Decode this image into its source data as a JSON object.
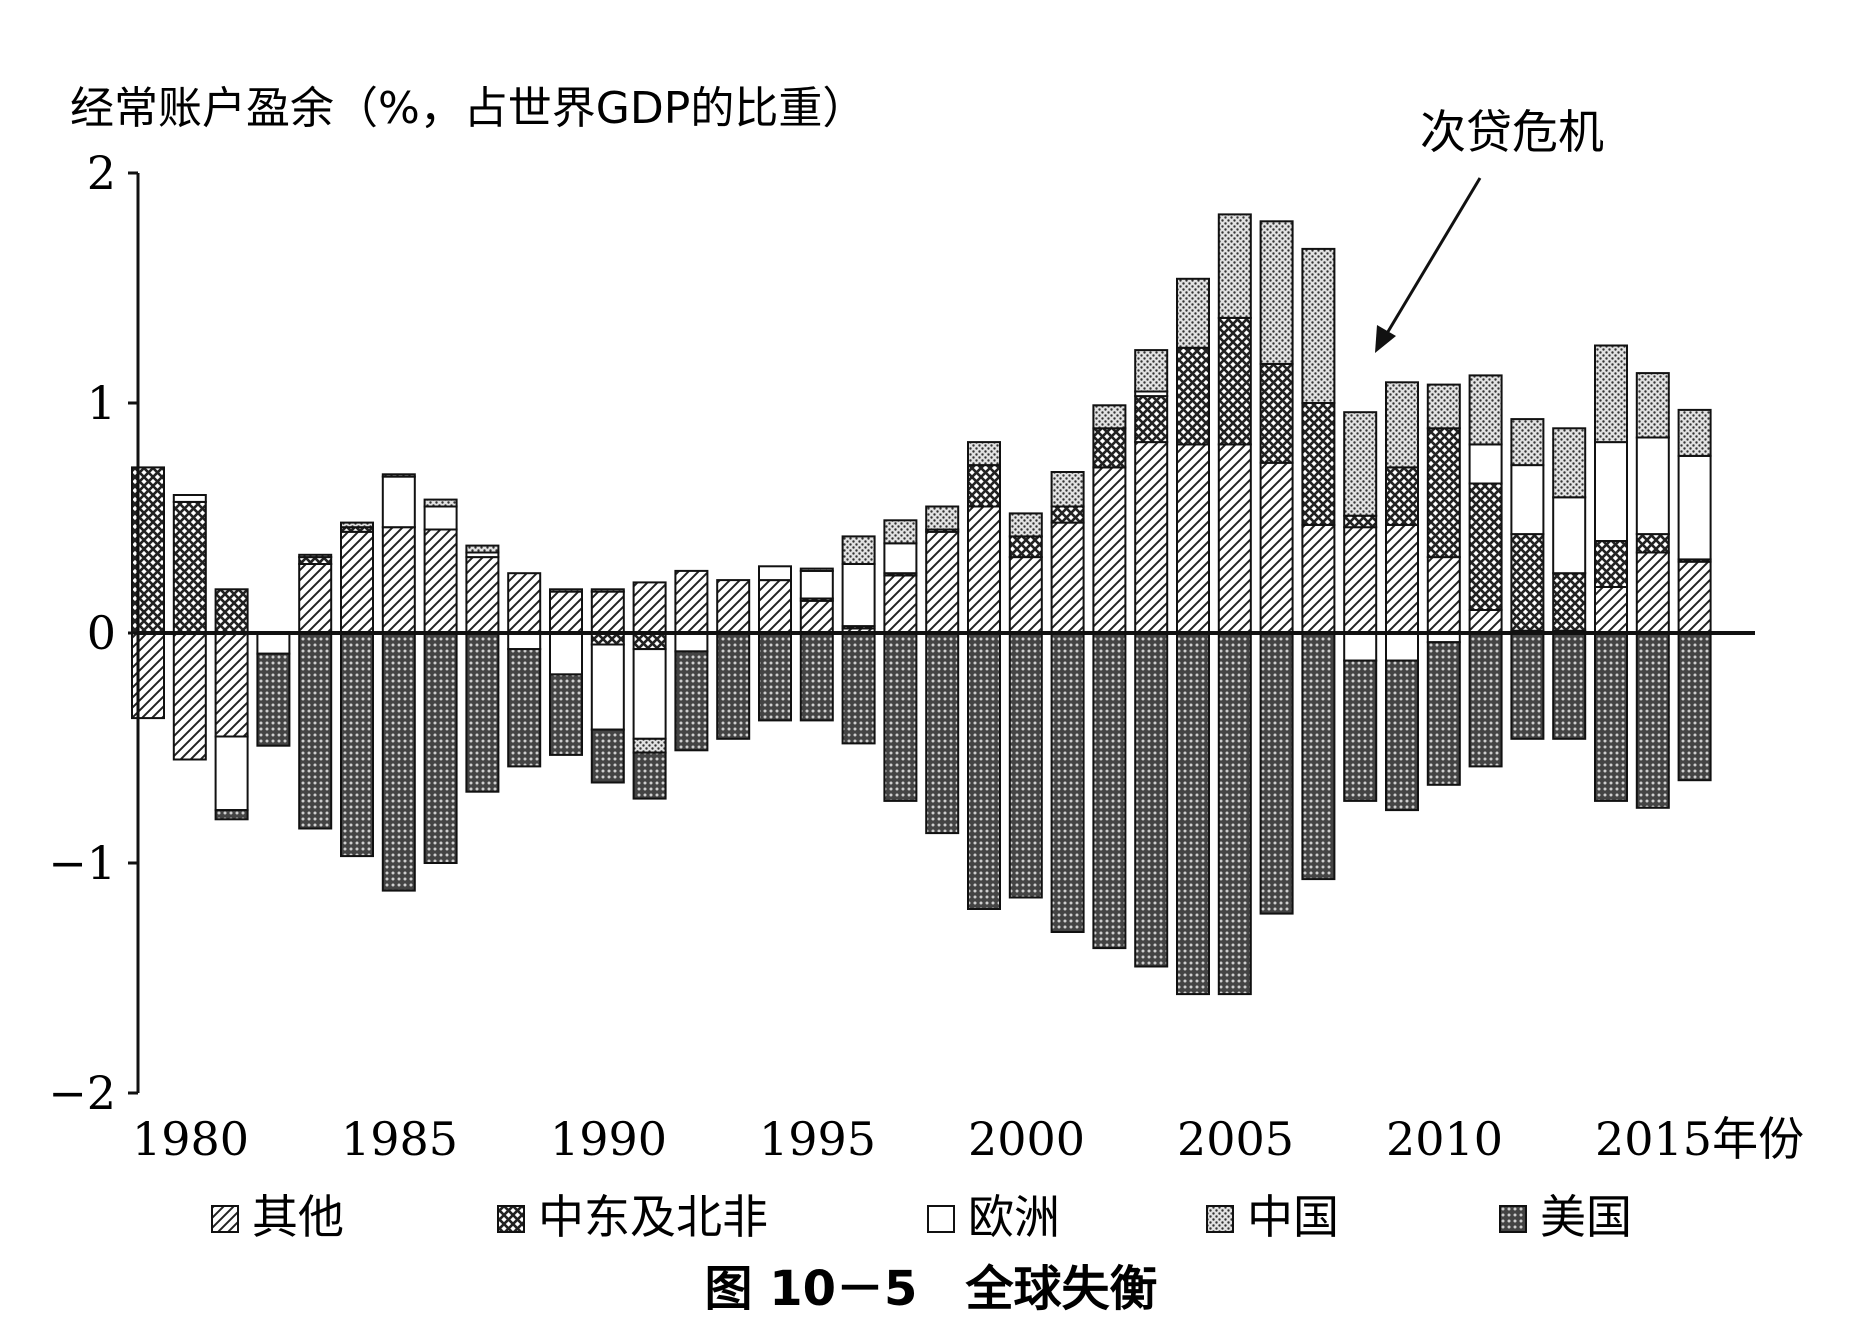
{
  "chart_data": {
    "type": "bar",
    "stacked": true,
    "ylabel": "经常账户盈余（%，占世界GDP的比重）",
    "caption": "图 10－5　全球失衡",
    "annotation": "次贷危机",
    "ylim": [
      -2,
      2
    ],
    "yticks": [
      {
        "v": 2,
        "t": "2"
      },
      {
        "v": 1,
        "t": "1"
      },
      {
        "v": 0,
        "t": "0"
      },
      {
        "v": -1,
        "t": "−1"
      },
      {
        "v": -2,
        "t": "−2"
      }
    ],
    "xticks": [
      {
        "year": 1980,
        "label": "1980"
      },
      {
        "year": 1985,
        "label": "1985"
      },
      {
        "year": 1990,
        "label": "1990"
      },
      {
        "year": 1995,
        "label": "1995"
      },
      {
        "year": 2000,
        "label": "2000"
      },
      {
        "year": 2005,
        "label": "2005"
      },
      {
        "year": 2010,
        "label": "2010"
      },
      {
        "year": 2015,
        "label": "2015年份"
      }
    ],
    "x": [
      1980,
      1981,
      1982,
      1983,
      1984,
      1985,
      1986,
      1987,
      1988,
      1989,
      1990,
      1991,
      1992,
      1993,
      1994,
      1995,
      1996,
      1997,
      1998,
      1999,
      2000,
      2001,
      2002,
      2003,
      2004,
      2005,
      2006,
      2007,
      2008,
      2009,
      2010,
      2011,
      2012,
      2013,
      2014,
      2015,
      2016,
      2017
    ],
    "series": [
      {
        "name": "其他",
        "pattern": "diag",
        "values": [
          -0.37,
          -0.55,
          -0.45,
          0,
          0.3,
          0.44,
          0.46,
          0.45,
          0.33,
          0.26,
          0.18,
          0.18,
          0.22,
          0.27,
          0.23,
          0.23,
          0.14,
          0.02,
          0.25,
          0.44,
          0.55,
          0.33,
          0.48,
          0.72,
          0.83,
          0.82,
          0.82,
          0.74,
          0.47,
          0.46,
          0.47,
          0.33,
          0.1,
          0.01,
          0.01,
          0.2,
          0.35,
          0.31
        ]
      },
      {
        "name": "中东及北非",
        "pattern": "cross",
        "values": [
          0.72,
          0.57,
          0.19,
          0,
          0.03,
          0.02,
          0,
          0,
          0,
          0,
          0,
          -0.05,
          -0.07,
          0,
          0,
          0,
          0.01,
          0.01,
          0.01,
          0.01,
          0.18,
          0.09,
          0.07,
          0.17,
          0.2,
          0.42,
          0.55,
          0.43,
          0.53,
          0.05,
          0.25,
          0.56,
          0.55,
          0.42,
          0.25,
          0.2,
          0.08,
          0.01
        ]
      },
      {
        "name": "欧洲",
        "pattern": "white",
        "values": [
          0,
          0.03,
          -0.32,
          -0.09,
          0,
          0,
          0.22,
          0.1,
          0.02,
          -0.07,
          -0.18,
          -0.37,
          -0.39,
          -0.08,
          0,
          0.06,
          0.12,
          0.27,
          0.13,
          0,
          0,
          0,
          0,
          0,
          0.02,
          0,
          0,
          0,
          0,
          -0.12,
          -0.12,
          -0.04,
          0.17,
          0.3,
          0.33,
          0.43,
          0.42,
          0.45
        ]
      },
      {
        "name": "中国",
        "pattern": "dots",
        "values": [
          0,
          0,
          0,
          0,
          0.01,
          0.02,
          0.01,
          0.03,
          0.03,
          0,
          0.01,
          0.01,
          -0.06,
          0,
          0,
          0,
          0.01,
          0.12,
          0.1,
          0.1,
          0.1,
          0.1,
          0.15,
          0.1,
          0.18,
          0.3,
          0.45,
          0.62,
          0.67,
          0.45,
          0.37,
          0.19,
          0.3,
          0.2,
          0.3,
          0.42,
          0.28,
          0.2
        ]
      },
      {
        "name": "美国",
        "pattern": "dense",
        "values": [
          0,
          0,
          -0.04,
          -0.4,
          -0.85,
          -0.97,
          -1.12,
          -1.0,
          -0.69,
          -0.51,
          -0.35,
          -0.23,
          -0.2,
          -0.43,
          -0.46,
          -0.38,
          -0.38,
          -0.48,
          -0.73,
          -0.87,
          -1.2,
          -1.15,
          -1.3,
          -1.37,
          -1.45,
          -1.57,
          -1.57,
          -1.22,
          -1.07,
          -0.61,
          -0.65,
          -0.62,
          -0.58,
          -0.46,
          -0.46,
          -0.73,
          -0.76,
          -0.64
        ]
      }
    ],
    "legend_position": "bottom"
  }
}
